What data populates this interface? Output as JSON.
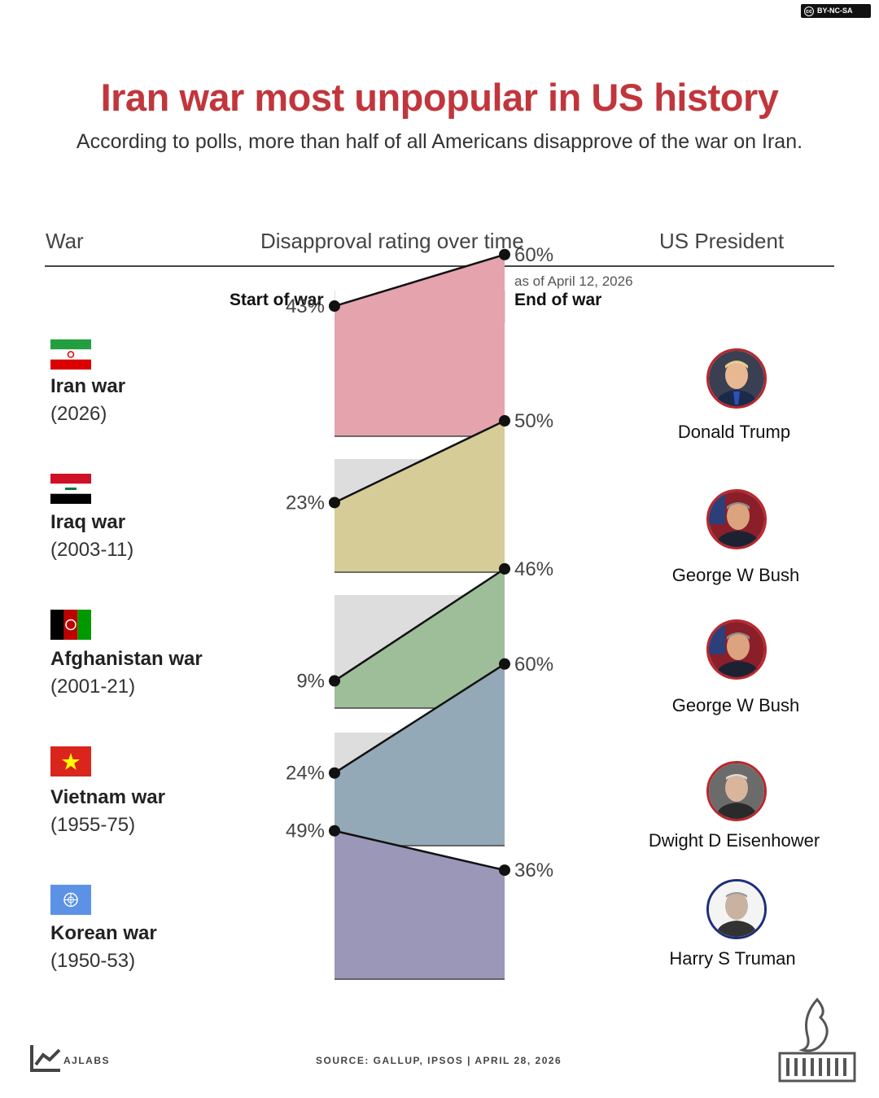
{
  "license": "BY-NC-SA",
  "license_badge": "cc",
  "header": {
    "title": "Iran war most unpopular in US history",
    "subtitle": "According to polls, more than half of all Americans disapprove of the war on Iran."
  },
  "columns": {
    "war": "War",
    "rating": "Disapproval rating over time",
    "president": "US President"
  },
  "subheaders": {
    "start": "Start of war",
    "end": "End of war"
  },
  "chart_data": {
    "type": "area",
    "ylim": [
      0,
      100
    ],
    "x": [
      "Start of war",
      "End of war"
    ],
    "series": [
      {
        "name": "Iran war",
        "years": "(2026)",
        "start": 43,
        "end": 60,
        "start_label": "43%",
        "end_label": "60%",
        "note": "as of April 12, 2026",
        "color": "#e4a3ad",
        "flag": "iran-flag-icon"
      },
      {
        "name": "Iraq war",
        "years": "(2003-11)",
        "start": 23,
        "end": 50,
        "start_label": "23%",
        "end_label": "50%",
        "note": "",
        "color": "#d6cc97",
        "flag": "iraq-flag-icon"
      },
      {
        "name": "Afghanistan war",
        "years": "(2001-21)",
        "start": 9,
        "end": 46,
        "start_label": "9%",
        "end_label": "46%",
        "note": "",
        "color": "#9dbe98",
        "flag": "afghanistan-flag-icon"
      },
      {
        "name": "Vietnam war",
        "years": "(1955-75)",
        "start": 24,
        "end": 60,
        "start_label": "24%",
        "end_label": "60%",
        "note": "",
        "color": "#94a9b8",
        "flag": "vietnam-flag-icon"
      },
      {
        "name": "Korean war",
        "years": "(1950-53)",
        "start": 49,
        "end": 36,
        "start_label": "49%",
        "end_label": "36%",
        "note": "",
        "color": "#9a97b9",
        "flag": "un-flag-icon"
      }
    ],
    "background_color": "#dddddd"
  },
  "presidents": [
    {
      "name": "Donald Trump"
    },
    {
      "name": "George W Bush"
    },
    {
      "name": "George W Bush"
    },
    {
      "name": "Dwight D Eisenhower"
    },
    {
      "name": "Harry S Truman"
    }
  ],
  "footer": {
    "brand": "AJLABS",
    "source": "SOURCE:  GALLUP, IPSOS  |  APRIL 28, 2026",
    "logo": "al-jazeera-logo-icon"
  },
  "colors": {
    "title": "#c1363c",
    "avatar_ring": "#b9262c"
  }
}
